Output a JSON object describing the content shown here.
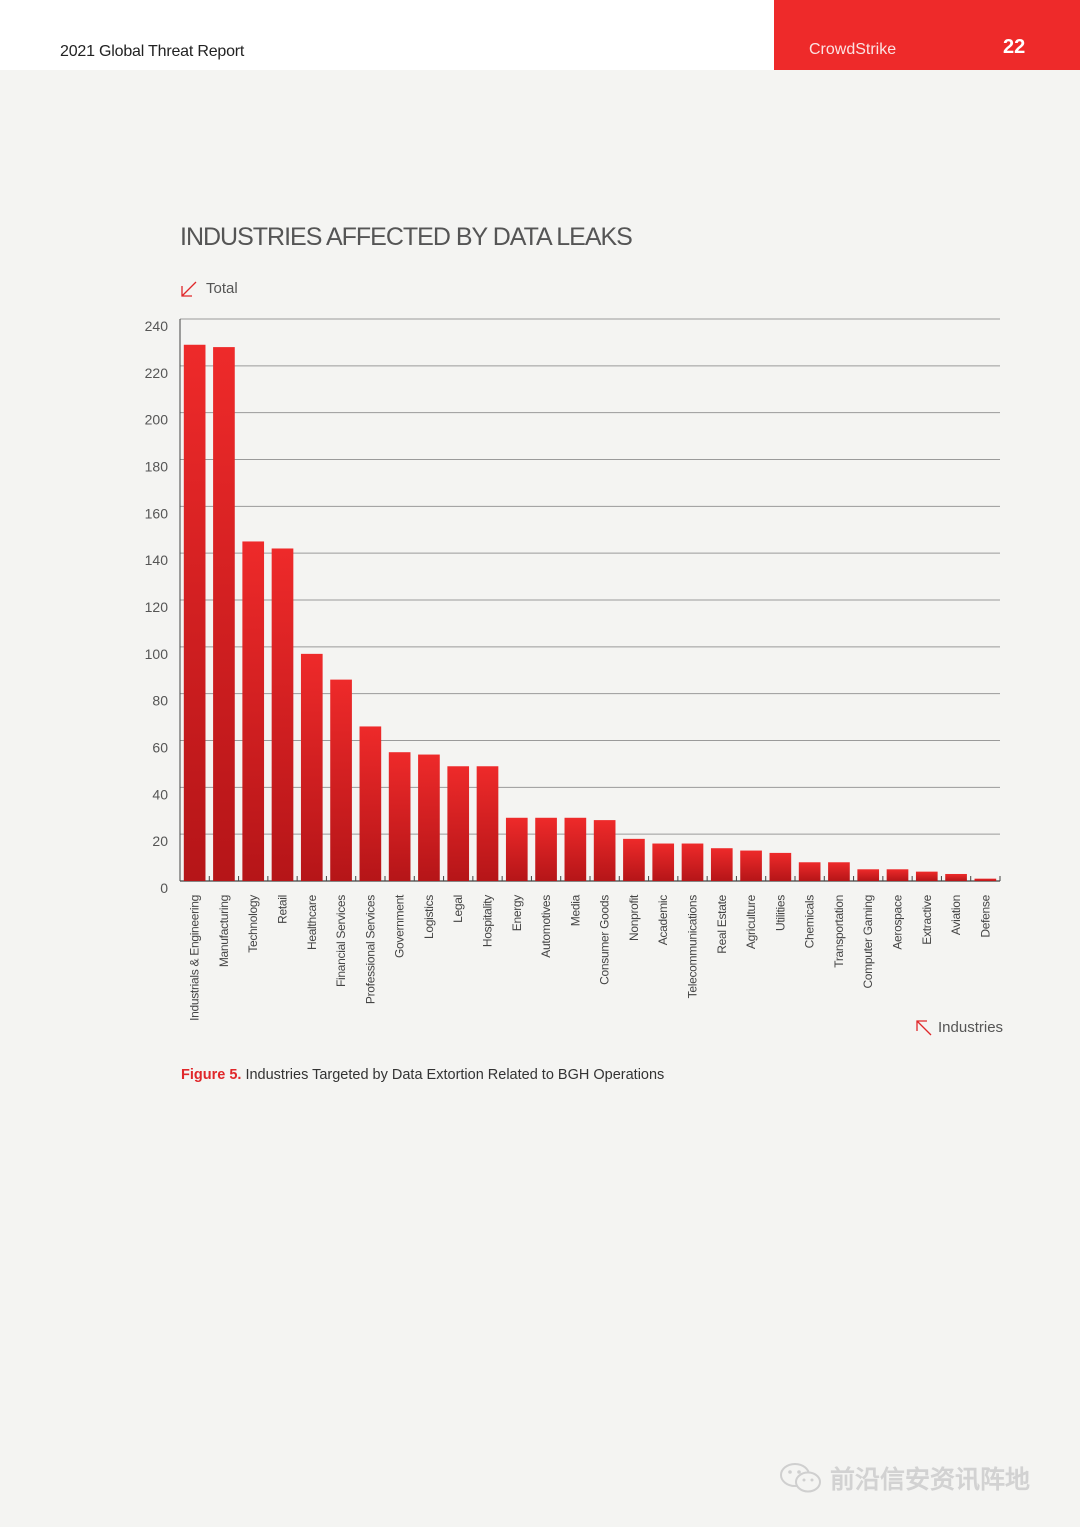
{
  "header": {
    "report_title": "2021 Global Threat Report",
    "brand": "CrowdStrike",
    "page_number": "22"
  },
  "colors": {
    "brand_red": "#ee2a2a",
    "bar_top": "#ee2a2a",
    "bar_bottom": "#b51518"
  },
  "chart_data": {
    "type": "bar",
    "title": "INDUSTRIES AFFECTED BY DATA LEAKS",
    "ylabel": "Total",
    "xlabel": "Industries",
    "ylim": [
      0,
      240
    ],
    "y_ticks": [
      0,
      20,
      40,
      60,
      80,
      100,
      120,
      140,
      160,
      180,
      200,
      220,
      240
    ],
    "grid": true,
    "categories": [
      "Industrials & Engineering",
      "Manufacturing",
      "Technology",
      "Retail",
      "Healthcare",
      "Financial Services",
      "Professional Services",
      "Government",
      "Logistics",
      "Legal",
      "Hospitality",
      "Energy",
      "Automotives",
      "Media",
      "Consumer Goods",
      "Nonprofit",
      "Academic",
      "Telecommunications",
      "Real Estate",
      "Agriculture",
      "Utilities",
      "Chemicals",
      "Transportation",
      "Computer Gaming",
      "Aerospace",
      "Extractive",
      "Aviation",
      "Defense"
    ],
    "values": [
      229,
      228,
      145,
      142,
      97,
      86,
      66,
      55,
      54,
      49,
      49,
      27,
      27,
      27,
      26,
      18,
      16,
      16,
      14,
      13,
      12,
      8,
      8,
      5,
      5,
      4,
      3,
      1
    ]
  },
  "caption": {
    "label": "Figure 5.",
    "text": " Industries Targeted by Data Extortion Related to BGH Operations"
  },
  "watermark": {
    "text": "前沿信安资讯阵地",
    "icon": "wechat-icon"
  }
}
